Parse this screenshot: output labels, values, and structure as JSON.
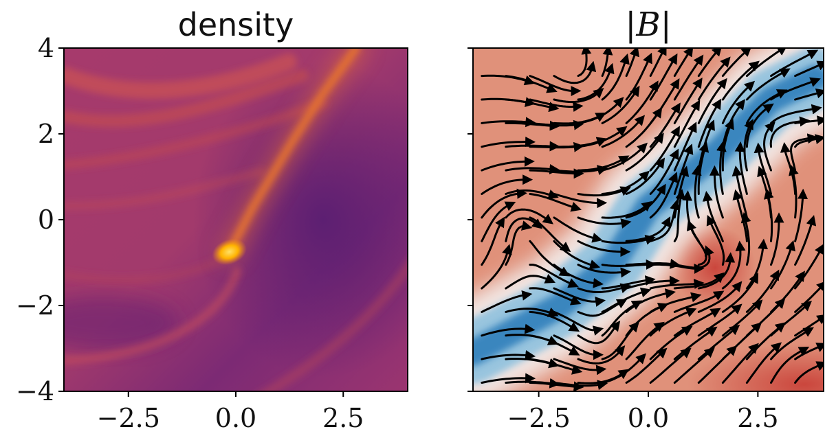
{
  "chart_data": [
    {
      "type": "heatmap",
      "title": "density",
      "xlabel": "",
      "ylabel": "",
      "xlim": [
        -4,
        4
      ],
      "ylim": [
        -4,
        4
      ],
      "x_ticks": [
        -2.5,
        0.0,
        2.5
      ],
      "x_tick_labels": [
        "−2.5",
        "0.0",
        "2.5"
      ],
      "y_ticks": [
        4,
        2,
        0,
        -2,
        -4
      ],
      "y_tick_labels": [
        "4",
        "2",
        "0",
        "−2",
        "−4"
      ],
      "colormap": "inferno",
      "colors": {
        "low": "#5c1f73",
        "mid": "#a8346a",
        "high": "#e35a3d",
        "peak": "#ffb000"
      },
      "features": {
        "bright_blob": {
          "x": -0.15,
          "y": -0.75
        },
        "tail": [
          [
            -0.15,
            -0.75
          ],
          [
            0.4,
            0.3
          ],
          [
            1.3,
            1.8
          ],
          [
            2.0,
            2.9
          ],
          [
            2.8,
            4.0
          ]
        ]
      }
    },
    {
      "type": "heatmap",
      "title": "|B|",
      "xlabel": "",
      "ylabel": "",
      "xlim": [
        -4,
        4
      ],
      "ylim": [
        -4,
        4
      ],
      "x_ticks": [
        -2.5,
        0.0,
        2.5
      ],
      "x_tick_labels": [
        "−2.5",
        "0.0",
        "2.5"
      ],
      "y_ticks": [
        4,
        2,
        0,
        -2,
        -4
      ],
      "y_tick_labels": [
        "",
        "",
        "",
        "",
        ""
      ],
      "colormap": "RdBu_r",
      "overlay": "streamlines",
      "colors": {
        "low": "#2b7bb9",
        "mid": "#f5f5f5",
        "high": "#c9433a",
        "streamline": "#000000"
      },
      "features": {
        "blue_band": [
          [
            -4.0,
            -3.1
          ],
          [
            -2.0,
            -2.0
          ],
          [
            -0.8,
            -1.0
          ],
          [
            0.0,
            0.3
          ],
          [
            1.5,
            1.5
          ],
          [
            2.8,
            2.8
          ],
          [
            3.8,
            3.3
          ]
        ]
      }
    }
  ]
}
